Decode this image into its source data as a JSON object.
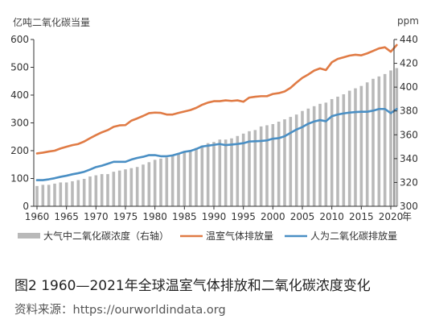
{
  "caption": "图2 1960—2021年全球温室气体排放和二氧化碳浓度变化",
  "source": "资料来源：https://ourworldindata.org",
  "colors": {
    "bars": "#b9b9b9",
    "ghg": "#e07b45",
    "co2": "#4a8fc4",
    "axis": "#333333"
  },
  "chart_data": {
    "type": "bar+line",
    "ylabel_left": "亿吨二氧化碳当量",
    "ylabel_right": "ppm",
    "x_unit": "年",
    "ylim_left": [
      0,
      600
    ],
    "ylim_right": [
      300,
      440
    ],
    "yticks_left": [
      0,
      100,
      200,
      300,
      400,
      500,
      600
    ],
    "yticks_right": [
      300,
      320,
      340,
      360,
      380,
      400,
      420,
      440
    ],
    "xticks": [
      1960,
      1965,
      1970,
      1975,
      1980,
      1985,
      1990,
      1995,
      2000,
      2005,
      2010,
      2015,
      2020
    ],
    "x": [
      1960,
      1961,
      1962,
      1963,
      1964,
      1965,
      1966,
      1967,
      1968,
      1969,
      1970,
      1971,
      1972,
      1973,
      1974,
      1975,
      1976,
      1977,
      1978,
      1979,
      1980,
      1981,
      1982,
      1983,
      1984,
      1985,
      1986,
      1987,
      1988,
      1989,
      1990,
      1991,
      1992,
      1993,
      1994,
      1995,
      1996,
      1997,
      1998,
      1999,
      2000,
      2001,
      2002,
      2003,
      2004,
      2005,
      2006,
      2007,
      2008,
      2009,
      2010,
      2011,
      2012,
      2013,
      2014,
      2015,
      2016,
      2017,
      2018,
      2019,
      2020,
      2021
    ],
    "series": [
      {
        "name": "大气中二氧化碳浓度（右轴）",
        "axis": "right",
        "type": "bar",
        "values": [
          317,
          318,
          318,
          319,
          320,
          320,
          321,
          322,
          323,
          325,
          326,
          327,
          327,
          329,
          330,
          331,
          332,
          333,
          335,
          337,
          339,
          340,
          341,
          343,
          344,
          346,
          347,
          349,
          351,
          353,
          354,
          356,
          356,
          357,
          359,
          361,
          363,
          364,
          367,
          368,
          369,
          371,
          373,
          375,
          377,
          380,
          382,
          384,
          386,
          387,
          390,
          392,
          394,
          397,
          399,
          401,
          404,
          407,
          409,
          411,
          414,
          416
        ]
      },
      {
        "name": "温室气体排放量",
        "axis": "left",
        "type": "line",
        "values": [
          190,
          193,
          197,
          200,
          208,
          214,
          220,
          224,
          233,
          245,
          256,
          266,
          274,
          286,
          291,
          292,
          308,
          316,
          325,
          335,
          337,
          336,
          330,
          330,
          336,
          341,
          346,
          354,
          365,
          373,
          378,
          378,
          381,
          379,
          381,
          376,
          391,
          394,
          396,
          396,
          404,
          407,
          413,
          426,
          445,
          462,
          474,
          488,
          496,
          490,
          518,
          530,
          536,
          542,
          545,
          543,
          550,
          559,
          568,
          572,
          556,
          580
        ]
      },
      {
        "name": "人为二氧化碳排放量",
        "axis": "left",
        "type": "line",
        "values": [
          94,
          94,
          97,
          101,
          106,
          110,
          115,
          119,
          124,
          132,
          141,
          146,
          153,
          160,
          160,
          160,
          168,
          174,
          178,
          184,
          184,
          180,
          180,
          183,
          189,
          196,
          199,
          206,
          215,
          218,
          221,
          224,
          220,
          222,
          224,
          227,
          233,
          234,
          235,
          237,
          243,
          245,
          252,
          264,
          276,
          285,
          297,
          305,
          310,
          306,
          324,
          330,
          334,
          337,
          339,
          340,
          340,
          344,
          350,
          350,
          335,
          350
        ]
      }
    ],
    "legend_position": "bottom",
    "grid": false
  }
}
